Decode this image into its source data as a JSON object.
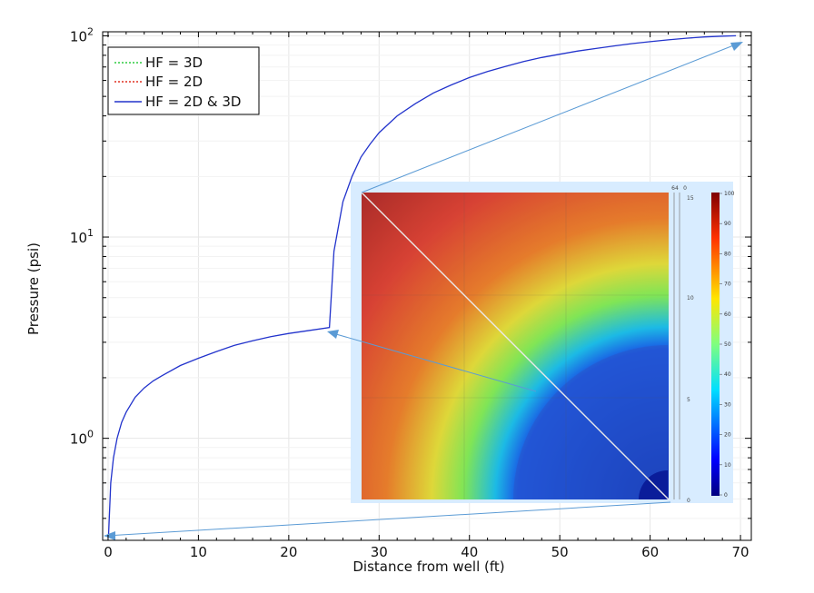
{
  "chart_data": {
    "type": "line",
    "xlabel": "Distance from well (ft)",
    "ylabel": "Pressure (psi)",
    "xlim": [
      -0.6,
      71.2
    ],
    "ylim_log10": [
      -0.507,
      2.02
    ],
    "log_y": true,
    "grid": true,
    "legend_position": "top-left",
    "x_ticks": [
      0,
      10,
      20,
      30,
      40,
      50,
      60,
      70
    ],
    "y_ticks": [
      {
        "base": "10",
        "exp": "0",
        "log": 0
      },
      {
        "base": "10",
        "exp": "1",
        "log": 1
      },
      {
        "base": "10",
        "exp": "2",
        "log": 2
      }
    ],
    "series": [
      {
        "name": "HF = 3D",
        "color": "#2ecc40",
        "dash": "2,2"
      },
      {
        "name": "HF = 2D",
        "color": "#e03020",
        "dash": "2,2"
      },
      {
        "name": "HF = 2D & 3D",
        "color": "#2233cc",
        "dash": ""
      }
    ],
    "curve": {
      "x": [
        0.05,
        0.3,
        0.6,
        1,
        1.5,
        2,
        3,
        4,
        5,
        6,
        8,
        10,
        12,
        14,
        16,
        18,
        20,
        22,
        24.5,
        24.5,
        25,
        26,
        27,
        28,
        29,
        30,
        32,
        34,
        36,
        38,
        40,
        42,
        44,
        46,
        48,
        50,
        52,
        54,
        56,
        58,
        60,
        62,
        64,
        66,
        68,
        69.5
      ],
      "y": [
        0.33,
        0.6,
        0.8,
        1.0,
        1.2,
        1.35,
        1.6,
        1.78,
        1.93,
        2.05,
        2.3,
        2.5,
        2.7,
        2.9,
        3.05,
        3.2,
        3.32,
        3.42,
        3.55,
        3.55,
        8.5,
        15,
        20,
        25,
        29,
        33,
        40,
        46,
        52,
        57,
        62,
        66.5,
        70.5,
        74.5,
        78,
        81,
        84,
        86.5,
        89,
        91.5,
        93.5,
        95.5,
        97.3,
        98.7,
        99.6,
        100
      ]
    }
  },
  "inset": {
    "colorbar_ticks": [
      "100",
      "90",
      "80",
      "70",
      "60",
      "50",
      "40",
      "30",
      "20",
      "10",
      "0"
    ],
    "side_axis_ticks": [
      "15",
      "10",
      "5",
      "0"
    ],
    "side_axis_top": [
      "64",
      "0"
    ]
  }
}
